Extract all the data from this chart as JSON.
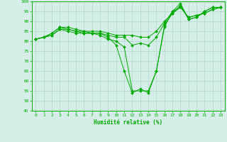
{
  "xlabel": "Humidité relative (%)",
  "xlim": [
    -0.5,
    23.5
  ],
  "ylim": [
    45,
    100
  ],
  "yticks": [
    45,
    50,
    55,
    60,
    65,
    70,
    75,
    80,
    85,
    90,
    95,
    100
  ],
  "xticks": [
    0,
    1,
    2,
    3,
    4,
    5,
    6,
    7,
    8,
    9,
    10,
    11,
    12,
    13,
    14,
    15,
    16,
    17,
    18,
    19,
    20,
    21,
    22,
    23
  ],
  "bg_color": "#d5eee8",
  "grid_color": "#b0d8cc",
  "line_color": "#00aa00",
  "series": [
    [
      81,
      82,
      83,
      86,
      85,
      84,
      84,
      84,
      84,
      82,
      78,
      65,
      54,
      56,
      54,
      65,
      87,
      95,
      99,
      91,
      92,
      95,
      97,
      97
    ],
    [
      81,
      82,
      83,
      86,
      86,
      85,
      84,
      84,
      83,
      81,
      80,
      77,
      55,
      55,
      55,
      65,
      88,
      94,
      98,
      91,
      92,
      95,
      97,
      97
    ],
    [
      81,
      82,
      84,
      87,
      86,
      85,
      85,
      84,
      84,
      83,
      82,
      82,
      78,
      79,
      78,
      82,
      89,
      95,
      97,
      92,
      93,
      94,
      96,
      97
    ],
    [
      81,
      82,
      84,
      87,
      87,
      86,
      85,
      85,
      85,
      84,
      83,
      83,
      83,
      82,
      82,
      85,
      90,
      94,
      97,
      92,
      93,
      94,
      96,
      97
    ]
  ]
}
